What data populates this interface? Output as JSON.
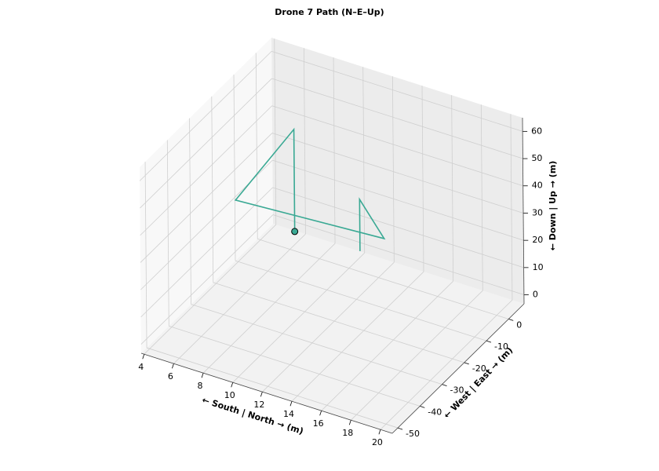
{
  "chart_data": {
    "type": "line3d",
    "title": "Drone 7 Path (N–E–Up)",
    "xlabel": "← South | North → (m)",
    "ylabel": "← West | East → (m)",
    "zlabel": "← Down | Up → (m)",
    "xlim": [
      3.8,
      20.8
    ],
    "xticks": [
      4,
      6,
      8,
      10,
      12,
      14,
      16,
      18,
      20
    ],
    "ylim": [
      -52.5,
      7
    ],
    "yticks": [
      -50,
      -40,
      -30,
      -20,
      -10,
      0
    ],
    "zlim": [
      -3.3,
      65
    ],
    "zticks": [
      0,
      10,
      20,
      30,
      40,
      50,
      60
    ],
    "grid": true,
    "series": [
      {
        "color": "#3aa994",
        "x": [
          9.0,
          9.0,
          9.7,
          19.3,
          16.0,
          16.0
        ],
        "y": [
          -17.6,
          -17.6,
          -48.6,
          -45.5,
          -34.6,
          -34.6
        ],
        "z": [
          22.5,
          60,
          60,
          60,
          60,
          41
        ]
      }
    ]
  }
}
